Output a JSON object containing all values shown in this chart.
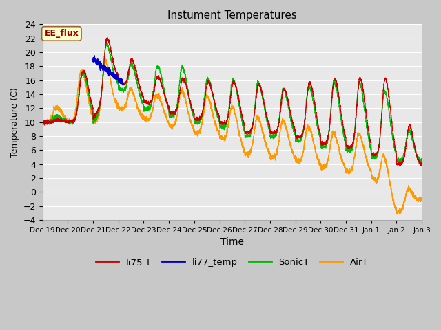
{
  "title": "Instument Temperatures",
  "xlabel": "Time",
  "ylabel": "Temperature (C)",
  "ylim": [
    -4,
    24
  ],
  "xtick_labels": [
    "Dec 19",
    "Dec 20",
    "Dec 21",
    "Dec 22",
    "Dec 23",
    "Dec 24",
    "Dec 25",
    "Dec 26",
    "Dec 27",
    "Dec 28",
    "Dec 29",
    "Dec 30",
    "Dec 31",
    "Jan 1",
    "Jan 2",
    "Jan 3"
  ],
  "colors": {
    "li75_t": "#cc0000",
    "li77_temp": "#0000cc",
    "SonicT": "#00bb00",
    "AirT": "#ff9900"
  },
  "annotation": {
    "text": "EE_flux",
    "facecolor": "#ffffcc",
    "edgecolor": "#996633",
    "textcolor": "#990000"
  },
  "legend_labels": [
    "li75_t",
    "li77_temp",
    "SonicT",
    "AirT"
  ],
  "fig_facecolor": "#c8c8c8",
  "plot_facecolor": "#e8e8e8",
  "title_fontsize": 11
}
